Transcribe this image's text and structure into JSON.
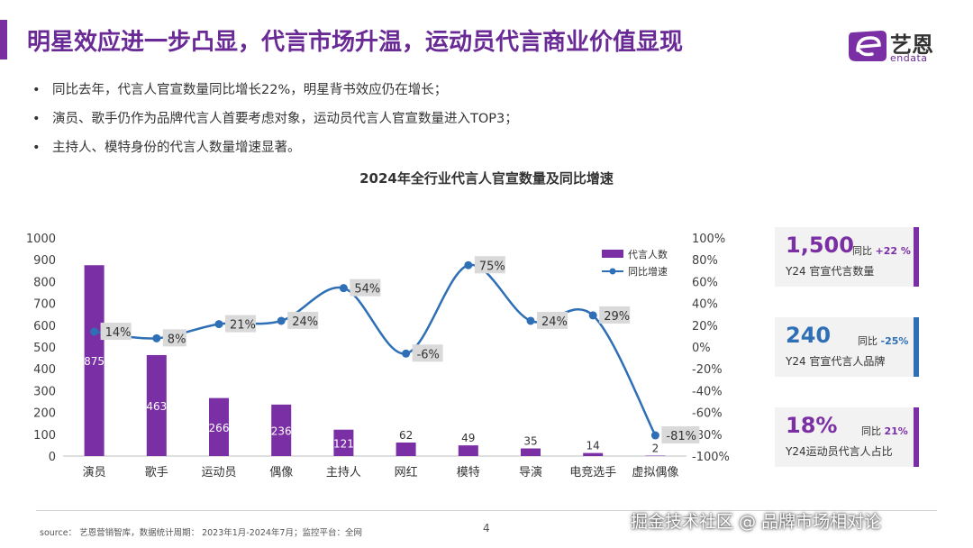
{
  "header": {
    "title": "明星效应进一步凸显，代言市场升温，运动员代言商业价值显现",
    "logo_text": "艺恩",
    "logo_sub": "endata"
  },
  "bullets": [
    "同比去年，代言人官宣数量同比增长22%，明星背书效应仍在增长；",
    "演员、歌手仍作为品牌代言人首要考虑对象，运动员代言人官宣数量进入TOP3；",
    "主持人、模特身份的代言人数量增速显著。"
  ],
  "chart_data": {
    "type": "bar",
    "title": "2024年全行业代言人官宣数量及同比增速",
    "categories": [
      "演员",
      "歌手",
      "运动员",
      "偶像",
      "主持人",
      "网红",
      "模特",
      "导演",
      "电竞选手",
      "虚拟偶像"
    ],
    "series": [
      {
        "name": "代言人数",
        "type": "bar",
        "axis": "left",
        "color": "#7b2fa5",
        "values": [
          875,
          463,
          266,
          236,
          121,
          62,
          49,
          35,
          14,
          2
        ]
      },
      {
        "name": "同比增速",
        "type": "line",
        "axis": "right",
        "color": "#2e6fb5",
        "values": [
          14,
          8,
          21,
          24,
          54,
          -6,
          75,
          24,
          29,
          -81
        ],
        "labels": [
          "14%",
          "8%",
          "21%",
          "24%",
          "54%",
          "-6%",
          "75%",
          "24%",
          "29%",
          "-81%"
        ]
      }
    ],
    "ylim_left": [
      0,
      1000
    ],
    "ylim_right": [
      -100,
      100
    ],
    "left_ticks": [
      "0",
      "100",
      "200",
      "300",
      "400",
      "500",
      "600",
      "700",
      "800",
      "900",
      "1000"
    ],
    "right_ticks": [
      "-100%",
      "-80%",
      "-60%",
      "-40%",
      "-20%",
      "0%",
      "20%",
      "40%",
      "60%",
      "80%",
      "100%"
    ],
    "legend_position": "top-right"
  },
  "stats": [
    {
      "big": "1,500",
      "small_prefix": "同比 ",
      "small_value": "+22 %",
      "label": "Y24 官宣代言数量",
      "color": "#7b2fa5",
      "small_color": "#7b2fa5"
    },
    {
      "big": "240",
      "small_prefix": "同比 ",
      "small_value": "-25%",
      "label": "Y24 官宣代言人品牌",
      "color": "#2e6fb5",
      "small_color": "#2e6fb5"
    },
    {
      "big": "18%",
      "small_prefix": "同比 ",
      "small_value": "21%",
      "label": "Y24运动员代言人占比",
      "color": "#7b2fa5",
      "small_color": "#7b2fa5"
    }
  ],
  "footer": {
    "source": "source： 艺恩营销智库，数据统计周期：  2023年1月-2024年7月；监控平台：全网",
    "page": "4",
    "watermark": "掘金技术社区 @ 品牌市场相对论"
  }
}
